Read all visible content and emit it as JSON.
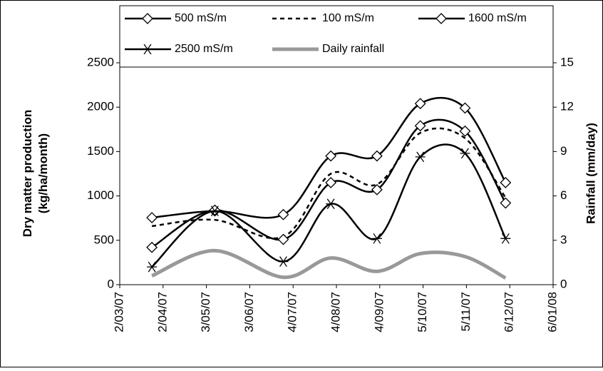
{
  "chart_data": {
    "type": "line",
    "ylabel": [
      "Dry matter production",
      "(kg/ha/month)"
    ],
    "y2label": "Rainfall (mm/day)",
    "x": [
      "2007-03-25",
      "2007-05-09",
      "2007-06-27",
      "2007-07-31",
      "2007-09-02",
      "2007-10-03",
      "2007-11-04",
      "2007-12-03"
    ],
    "xlim": [
      "2007-03-02",
      "2008-01-06"
    ],
    "xticks": [
      {
        "value": "2007-03-02",
        "label": "2/03/07"
      },
      {
        "value": "2007-04-02",
        "label": "2/04/07"
      },
      {
        "value": "2007-05-03",
        "label": "3/05/07"
      },
      {
        "value": "2007-06-03",
        "label": "3/06/07"
      },
      {
        "value": "2007-07-04",
        "label": "4/07/07"
      },
      {
        "value": "2007-08-04",
        "label": "4/08/07"
      },
      {
        "value": "2007-09-04",
        "label": "4/09/07"
      },
      {
        "value": "2007-10-05",
        "label": "5/10/07"
      },
      {
        "value": "2007-11-05",
        "label": "5/11/07"
      },
      {
        "value": "2007-12-06",
        "label": "6/12/07"
      },
      {
        "value": "2008-01-06",
        "label": "6/01/08"
      }
    ],
    "ylim": [
      0,
      2500
    ],
    "yticks": [
      0,
      500,
      1000,
      1500,
      2000,
      2500
    ],
    "y2lim": [
      0,
      15
    ],
    "y2ticks": [
      0,
      3,
      6,
      9,
      12,
      15
    ],
    "series": [
      {
        "name": "500 mS/m",
        "color": "#000000",
        "marker": "diamond",
        "dash": false,
        "values": [
          755,
          830,
          790,
          1450,
          1450,
          2040,
          1990,
          1150
        ]
      },
      {
        "name": "100 mS/m",
        "color": "#000000",
        "marker": "none",
        "dash": true,
        "values": [
          660,
          730,
          540,
          1250,
          1130,
          1710,
          1650,
          980
        ]
      },
      {
        "name": "1600 mS/m",
        "color": "#000000",
        "marker": "diamond",
        "dash": false,
        "values": [
          420,
          840,
          510,
          1150,
          1070,
          1790,
          1730,
          920
        ]
      },
      {
        "name": "2500 mS/m",
        "color": "#000000",
        "marker": "star",
        "dash": false,
        "values": [
          200,
          830,
          260,
          910,
          520,
          1440,
          1480,
          520
        ]
      },
      {
        "name": "Daily rainfall",
        "color": "#999999",
        "marker": "none",
        "dash": false,
        "axis": "y2",
        "values": [
          0.6,
          2.3,
          0.5,
          1.8,
          0.9,
          2.1,
          1.9,
          0.45
        ]
      }
    ]
  }
}
